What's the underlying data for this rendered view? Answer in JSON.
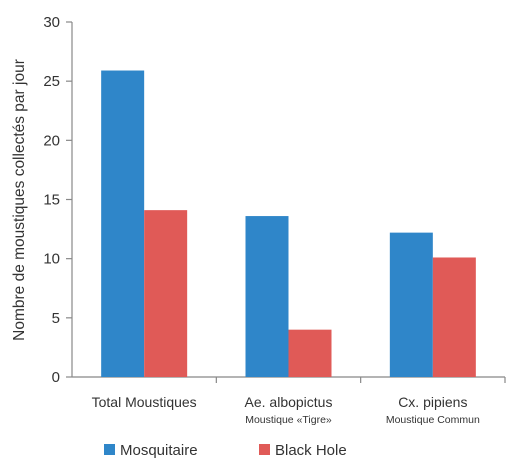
{
  "chart_data": {
    "type": "bar",
    "categories": [
      {
        "label": "Total Moustiques",
        "sublabel": ""
      },
      {
        "label": "Ae. albopictus",
        "sublabel": "Moustique «Tigre»"
      },
      {
        "label": "Cx. pipiens",
        "sublabel": "Moustique Commun"
      }
    ],
    "series": [
      {
        "name": "Mosquitaire",
        "color": "#2f86c9",
        "values": [
          25.9,
          13.6,
          12.2
        ]
      },
      {
        "name": "Black Hole",
        "color": "#e05a57",
        "values": [
          14.1,
          4.0,
          10.1
        ]
      }
    ],
    "title": "",
    "xlabel": "",
    "ylabel": "Nombre de moustiques collectés par jour",
    "ylim": [
      0,
      30
    ],
    "yticks": [
      0,
      5,
      10,
      15,
      20,
      25,
      30
    ],
    "grid": false,
    "legend_position": "bottom-left"
  }
}
